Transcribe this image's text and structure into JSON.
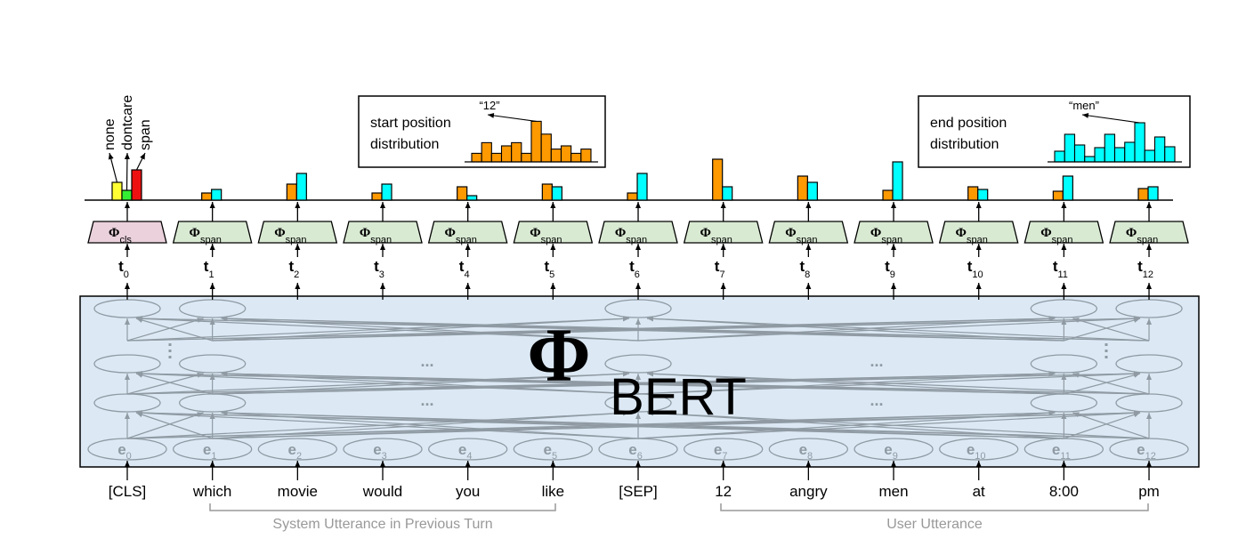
{
  "bert": {
    "symbol": "Φ",
    "label": "BERT"
  },
  "cls_head": {
    "symbol": "Φ",
    "sub": "cls",
    "labels": [
      "none",
      "dontcare",
      "span"
    ],
    "values": [
      20,
      11,
      34
    ],
    "colors": [
      "#ffff33",
      "#33ee33",
      "#ee1111"
    ]
  },
  "span_head": {
    "symbol": "Φ",
    "sub": "span"
  },
  "colors": {
    "start": "#ff9900",
    "end": "#00ffff",
    "bert_bg": "#dce9f5",
    "cls_bg": "#ead1dc",
    "span_bg": "#d9ead3",
    "node": "#8f9aa3"
  },
  "tokens": [
    "[CLS]",
    "which",
    "movie",
    "would",
    "you",
    "like",
    "[SEP]",
    "12",
    "angry",
    "men",
    "at",
    "8:00",
    "pm"
  ],
  "t_sub": [
    "0",
    "1",
    "2",
    "3",
    "4",
    "5",
    "6",
    "7",
    "8",
    "9",
    "10",
    "11",
    "12"
  ],
  "start_scores": [
    null,
    8,
    18,
    8,
    15,
    18,
    8,
    46,
    27,
    11,
    15,
    10,
    13
  ],
  "end_scores": [
    null,
    12,
    30,
    18,
    5,
    15,
    30,
    15,
    20,
    43,
    12,
    27,
    15
  ],
  "start_box": {
    "title1": "start position",
    "title2": "distribution",
    "pointer": "“12”",
    "values": [
      8,
      18,
      8,
      15,
      18,
      8,
      38,
      26,
      12,
      15,
      8,
      12
    ]
  },
  "end_box": {
    "title1": "end position",
    "title2": "distribution",
    "pointer": "“men”",
    "values": [
      12,
      31,
      19,
      6,
      16,
      31,
      16,
      22,
      44,
      13,
      28,
      17
    ]
  },
  "segments": {
    "system": "System Utterance in Previous Turn",
    "user": "User Utterance"
  },
  "token_symbol": "t",
  "embed_symbol": "e",
  "ellipsis": "..."
}
